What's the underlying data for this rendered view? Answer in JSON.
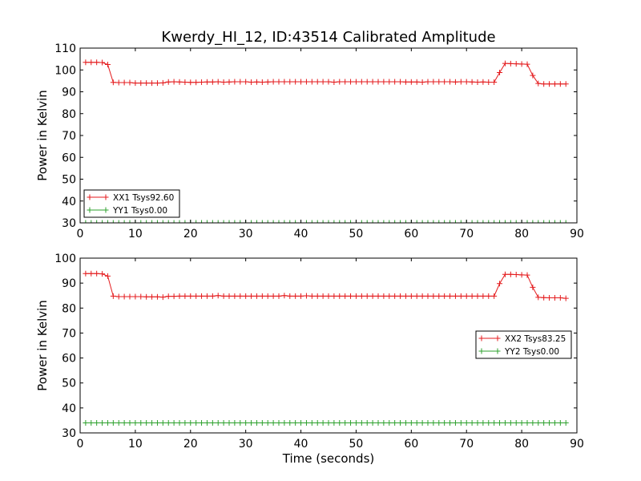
{
  "title": "Kwerdy_HI_12, ID:43514 Calibrated Amplitude",
  "chart_data": [
    {
      "type": "line",
      "ylabel": "Power in Kelvin",
      "xlabel": "",
      "xlim": [
        0,
        90
      ],
      "ylim": [
        30,
        110
      ],
      "xticks": [
        0,
        10,
        20,
        30,
        40,
        50,
        60,
        70,
        80,
        90
      ],
      "yticks": [
        30,
        40,
        50,
        60,
        70,
        80,
        90,
        100,
        110
      ],
      "grid": false,
      "legend_position": "lower-left",
      "series": [
        {
          "name": "XX1 Tsys92.60",
          "color": "#e41a1c",
          "x": [
            1,
            2,
            3,
            4,
            5,
            6,
            7,
            8,
            9,
            10,
            11,
            12,
            13,
            14,
            15,
            16,
            17,
            18,
            19,
            20,
            21,
            22,
            23,
            24,
            25,
            26,
            27,
            28,
            29,
            30,
            31,
            32,
            33,
            34,
            35,
            36,
            37,
            38,
            39,
            40,
            41,
            42,
            43,
            44,
            45,
            46,
            47,
            48,
            49,
            50,
            51,
            52,
            53,
            54,
            55,
            56,
            57,
            58,
            59,
            60,
            61,
            62,
            63,
            64,
            65,
            66,
            67,
            68,
            69,
            70,
            71,
            72,
            73,
            74,
            75,
            76,
            77,
            78,
            79,
            80,
            81,
            82,
            83,
            84,
            85,
            86,
            87,
            88
          ],
          "y": [
            103.5,
            103.5,
            103.5,
            103.4,
            102.5,
            94.3,
            94.2,
            94.2,
            94.2,
            94.0,
            94.0,
            94.0,
            94.0,
            94.0,
            94.1,
            94.5,
            94.6,
            94.5,
            94.4,
            94.3,
            94.3,
            94.4,
            94.5,
            94.5,
            94.6,
            94.4,
            94.5,
            94.6,
            94.6,
            94.6,
            94.4,
            94.5,
            94.4,
            94.5,
            94.6,
            94.6,
            94.6,
            94.6,
            94.6,
            94.6,
            94.6,
            94.6,
            94.6,
            94.6,
            94.6,
            94.4,
            94.6,
            94.6,
            94.6,
            94.6,
            94.6,
            94.6,
            94.6,
            94.6,
            94.6,
            94.6,
            94.6,
            94.6,
            94.5,
            94.5,
            94.5,
            94.4,
            94.6,
            94.6,
            94.6,
            94.6,
            94.6,
            94.5,
            94.6,
            94.6,
            94.5,
            94.4,
            94.5,
            94.4,
            94.4,
            98.8,
            103.0,
            102.9,
            102.8,
            102.7,
            102.6,
            97.5,
            93.8,
            93.6,
            93.6,
            93.6,
            93.6,
            93.6
          ]
        },
        {
          "name": "YY1 Tsys0.00",
          "color": "#2ca02c",
          "x": [
            1,
            2,
            3,
            4,
            5,
            6,
            7,
            8,
            9,
            10,
            11,
            12,
            13,
            14,
            15,
            16,
            17,
            18,
            19,
            20,
            21,
            22,
            23,
            24,
            25,
            26,
            27,
            28,
            29,
            30,
            31,
            32,
            33,
            34,
            35,
            36,
            37,
            38,
            39,
            40,
            41,
            42,
            43,
            44,
            45,
            46,
            47,
            48,
            49,
            50,
            51,
            52,
            53,
            54,
            55,
            56,
            57,
            58,
            59,
            60,
            61,
            62,
            63,
            64,
            65,
            66,
            67,
            68,
            69,
            70,
            71,
            72,
            73,
            74,
            75,
            76,
            77,
            78,
            79,
            80,
            81,
            82,
            83,
            84,
            85,
            86,
            87,
            88
          ],
          "y": [
            30,
            30,
            30,
            30,
            30,
            30,
            30,
            30,
            30,
            30,
            30,
            30,
            30,
            30,
            30,
            30,
            30,
            30,
            30,
            30,
            30,
            30,
            30,
            30,
            30,
            30,
            30,
            30,
            30,
            30,
            30,
            30,
            30,
            30,
            30,
            30,
            30,
            30,
            30,
            30,
            30,
            30,
            30,
            30,
            30,
            30,
            30,
            30,
            30,
            30,
            30,
            30,
            30,
            30,
            30,
            30,
            30,
            30,
            30,
            30,
            30,
            30,
            30,
            30,
            30,
            30,
            30,
            30,
            30,
            30,
            30,
            30,
            30,
            30,
            30,
            30,
            30,
            30,
            30,
            30,
            30,
            30,
            30,
            30,
            30,
            30,
            30,
            30
          ]
        }
      ]
    },
    {
      "type": "line",
      "ylabel": "Power in Kelvin",
      "xlabel": "Time (seconds)",
      "xlim": [
        0,
        90
      ],
      "ylim": [
        30,
        100
      ],
      "xticks": [
        0,
        10,
        20,
        30,
        40,
        50,
        60,
        70,
        80,
        90
      ],
      "yticks": [
        30,
        40,
        50,
        60,
        70,
        80,
        90,
        100
      ],
      "grid": false,
      "legend_position": "center-right",
      "series": [
        {
          "name": "XX2 Tsys83.25",
          "color": "#e41a1c",
          "x": [
            1,
            2,
            3,
            4,
            5,
            6,
            7,
            8,
            9,
            10,
            11,
            12,
            13,
            14,
            15,
            16,
            17,
            18,
            19,
            20,
            21,
            22,
            23,
            24,
            25,
            26,
            27,
            28,
            29,
            30,
            31,
            32,
            33,
            34,
            35,
            36,
            37,
            38,
            39,
            40,
            41,
            42,
            43,
            44,
            45,
            46,
            47,
            48,
            49,
            50,
            51,
            52,
            53,
            54,
            55,
            56,
            57,
            58,
            59,
            60,
            61,
            62,
            63,
            64,
            65,
            66,
            67,
            68,
            69,
            70,
            71,
            72,
            73,
            74,
            75,
            76,
            77,
            78,
            79,
            80,
            81,
            82,
            83,
            84,
            85,
            86,
            87,
            88
          ],
          "y": [
            93.8,
            93.8,
            93.8,
            93.7,
            92.8,
            84.8,
            84.6,
            84.6,
            84.6,
            84.6,
            84.6,
            84.5,
            84.5,
            84.5,
            84.4,
            84.7,
            84.7,
            84.8,
            84.8,
            84.8,
            84.8,
            84.8,
            84.8,
            84.8,
            85.0,
            84.8,
            84.8,
            84.8,
            84.8,
            84.8,
            84.8,
            84.8,
            84.8,
            84.8,
            84.8,
            84.8,
            85.0,
            84.8,
            84.8,
            84.8,
            84.9,
            84.8,
            84.8,
            84.8,
            84.8,
            84.8,
            84.8,
            84.8,
            84.8,
            84.8,
            84.8,
            84.8,
            84.8,
            84.8,
            84.8,
            84.8,
            84.8,
            84.8,
            84.8,
            84.8,
            84.8,
            84.8,
            84.8,
            84.8,
            84.8,
            84.8,
            84.8,
            84.8,
            84.8,
            84.8,
            84.8,
            84.8,
            84.8,
            84.8,
            84.8,
            89.8,
            93.5,
            93.5,
            93.4,
            93.3,
            93.2,
            88.3,
            84.3,
            84.2,
            84.1,
            84.1,
            84.1,
            83.9
          ]
        },
        {
          "name": "YY2 Tsys0.00",
          "color": "#2ca02c",
          "x": [
            1,
            2,
            3,
            4,
            5,
            6,
            7,
            8,
            9,
            10,
            11,
            12,
            13,
            14,
            15,
            16,
            17,
            18,
            19,
            20,
            21,
            22,
            23,
            24,
            25,
            26,
            27,
            28,
            29,
            30,
            31,
            32,
            33,
            34,
            35,
            36,
            37,
            38,
            39,
            40,
            41,
            42,
            43,
            44,
            45,
            46,
            47,
            48,
            49,
            50,
            51,
            52,
            53,
            54,
            55,
            56,
            57,
            58,
            59,
            60,
            61,
            62,
            63,
            64,
            65,
            66,
            67,
            68,
            69,
            70,
            71,
            72,
            73,
            74,
            75,
            76,
            77,
            78,
            79,
            80,
            81,
            82,
            83,
            84,
            85,
            86,
            87,
            88
          ],
          "y": [
            34,
            34,
            34,
            34,
            34,
            34,
            34,
            34,
            34,
            34,
            34,
            34,
            34,
            34,
            34,
            34,
            34,
            34,
            34,
            34,
            34,
            34,
            34,
            34,
            34,
            34,
            34,
            34,
            34,
            34,
            34,
            34,
            34,
            34,
            34,
            34,
            34,
            34,
            34,
            34,
            34,
            34,
            34,
            34,
            34,
            34,
            34,
            34,
            34,
            34,
            34,
            34,
            34,
            34,
            34,
            34,
            34,
            34,
            34,
            34,
            34,
            34,
            34,
            34,
            34,
            34,
            34,
            34,
            34,
            34,
            34,
            34,
            34,
            34,
            34,
            34,
            34,
            34,
            34,
            34,
            34,
            34,
            34,
            34,
            34,
            34,
            34,
            34
          ]
        }
      ]
    }
  ]
}
